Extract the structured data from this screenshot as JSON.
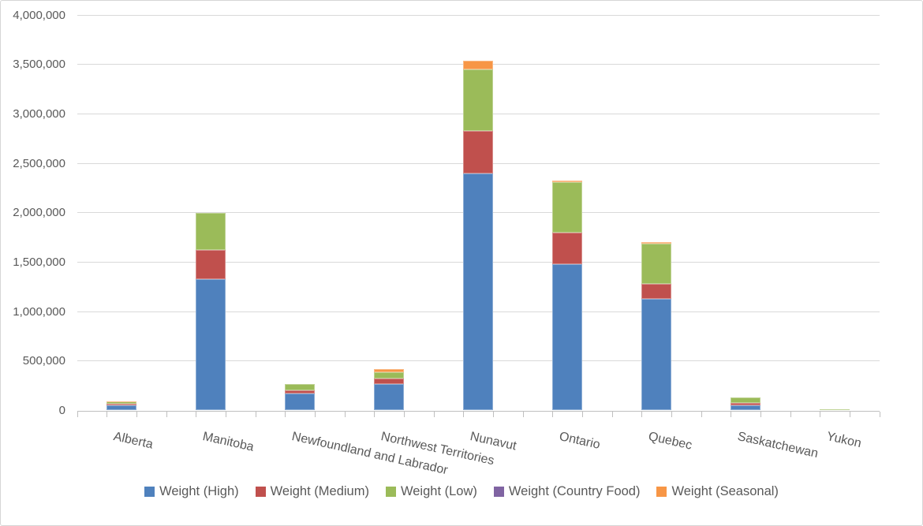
{
  "chart_data": {
    "type": "bar",
    "stacked": true,
    "title": "",
    "xlabel": "",
    "ylabel": "",
    "categories": [
      "Alberta",
      "Manitoba",
      "Newfoundland and Labrador",
      "Northwest Territories",
      "Nunavut",
      "Ontario",
      "Quebec",
      "Saskatchewan",
      "Yukon"
    ],
    "series": [
      {
        "name": "Weight (High)",
        "color": "#4F81BD",
        "values": [
          48000,
          1330000,
          175000,
          270000,
          2400000,
          1480000,
          1130000,
          50000,
          10000
        ]
      },
      {
        "name": "Weight (Medium)",
        "color": "#C0504D",
        "values": [
          17000,
          290000,
          25000,
          50000,
          430000,
          320000,
          150000,
          22000,
          0
        ]
      },
      {
        "name": "Weight (Low)",
        "color": "#9BBB59",
        "values": [
          28000,
          380000,
          65000,
          70000,
          620000,
          510000,
          405000,
          58000,
          5000
        ]
      },
      {
        "name": "Weight (Country Food)",
        "color": "#8064A2",
        "values": [
          0,
          0,
          0,
          0,
          0,
          0,
          0,
          0,
          0
        ]
      },
      {
        "name": "Weight (Seasonal)",
        "color": "#F79646",
        "values": [
          2000,
          0,
          0,
          25000,
          85000,
          15000,
          20000,
          0,
          0
        ]
      }
    ],
    "ylim": [
      0,
      4000000
    ],
    "ytick_step": 500000,
    "ytick_labels": [
      "0",
      "500,000",
      "1,000,000",
      "1,500,000",
      "2,000,000",
      "2,500,000",
      "3,000,000",
      "3,500,000",
      "4,000,000"
    ],
    "grid": "horizontal",
    "legend_position": "bottom"
  },
  "colors": {
    "gridline": "#D9D9D9",
    "axis_line": "#BFBFBF",
    "text": "#595959",
    "background": "#FFFFFF",
    "border": "#D6D6D6"
  }
}
